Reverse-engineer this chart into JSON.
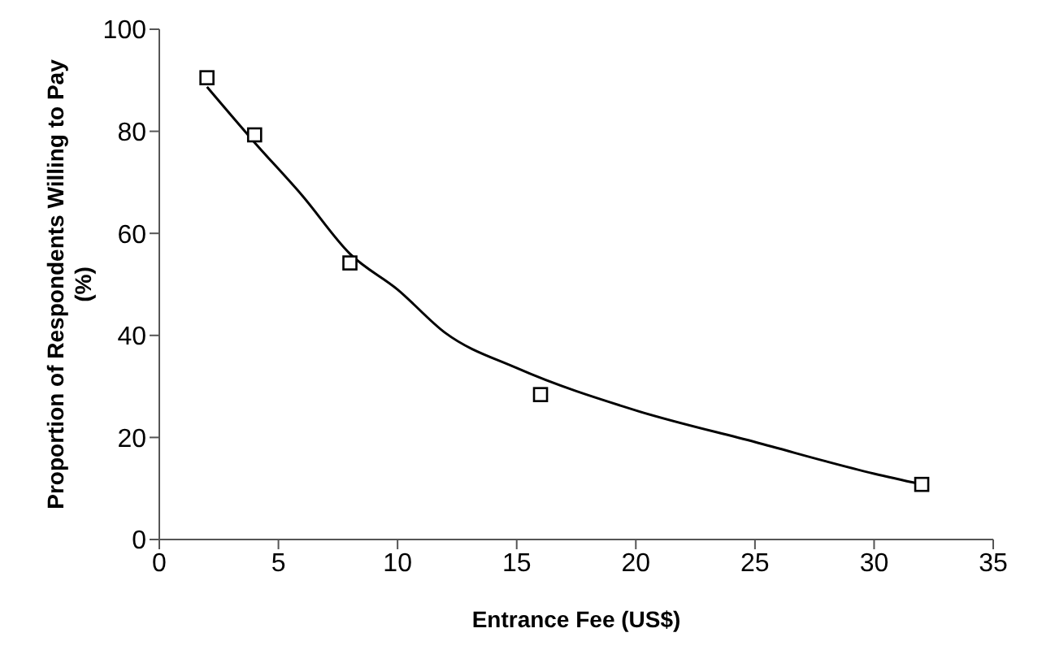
{
  "chart_data": {
    "type": "scatter",
    "xlabel": "Entrance Fee (US$)",
    "ylabel": "Proportion of Respondents Willing to Pay (%)",
    "xlim": [
      0,
      35
    ],
    "xticks": [
      0,
      5,
      10,
      15,
      20,
      25,
      30,
      35
    ],
    "ylim": [
      0,
      100
    ],
    "yticks": [
      0,
      20,
      40,
      60,
      80,
      100
    ],
    "grid": false,
    "legend": false,
    "series": [
      {
        "type": "scatter",
        "marker": "square",
        "color": "#000000",
        "x": [
          2,
          4,
          8,
          16,
          32
        ],
        "values": [
          90.5,
          79.3,
          54.2,
          28.4,
          10.8
        ]
      },
      {
        "type": "line",
        "marker": "none",
        "color": "#000000",
        "x": [
          2,
          4,
          6,
          8,
          10,
          12,
          15,
          20,
          25,
          30,
          32
        ],
        "values": [
          88.7,
          77.8,
          67.4,
          56,
          49,
          40.5,
          33.6,
          25.3,
          19.1,
          12.9,
          10.8
        ]
      }
    ]
  }
}
